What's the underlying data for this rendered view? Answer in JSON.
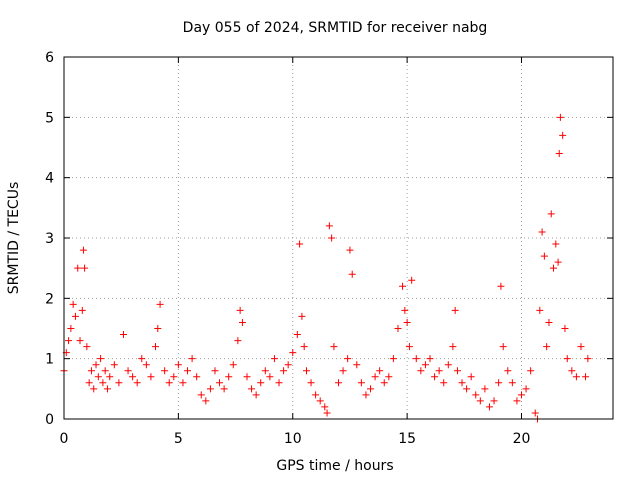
{
  "chart_data": {
    "type": "scatter",
    "title": "Day 055 of 2024, SRMTID for receiver nabg",
    "xlabel": "GPS time / hours",
    "ylabel": "SRMTID / TECUs",
    "xlim": [
      0,
      24
    ],
    "ylim": [
      0,
      6
    ],
    "xticks": [
      0,
      5,
      10,
      15,
      20
    ],
    "xtick_labels": [
      "0",
      "5",
      "10",
      "15",
      "20"
    ],
    "yticks": [
      0,
      1,
      2,
      3,
      4,
      5,
      6
    ],
    "ytick_labels": [
      "0",
      "1",
      "2",
      "3",
      "4",
      "5",
      "6"
    ],
    "grid": true,
    "legend": "none",
    "marker": "plus",
    "color": "#ff0000",
    "series": [
      {
        "name": "SRMTID",
        "x": [
          0.0,
          0.1,
          0.2,
          0.3,
          0.4,
          0.5,
          0.6,
          0.7,
          0.8,
          0.85,
          0.9,
          1.0,
          1.1,
          1.2,
          1.3,
          1.4,
          1.5,
          1.6,
          1.7,
          1.8,
          1.9,
          2.0,
          2.2,
          2.4,
          2.6,
          2.8,
          3.0,
          3.2,
          3.4,
          3.6,
          3.8,
          4.0,
          4.1,
          4.2,
          4.4,
          4.6,
          4.8,
          5.0,
          5.2,
          5.4,
          5.6,
          5.8,
          6.0,
          6.2,
          6.4,
          6.6,
          6.8,
          7.0,
          7.2,
          7.4,
          7.6,
          7.7,
          7.8,
          8.0,
          8.2,
          8.4,
          8.6,
          8.8,
          9.0,
          9.2,
          9.4,
          9.6,
          9.8,
          10.0,
          10.2,
          10.3,
          10.4,
          10.5,
          10.6,
          10.8,
          11.0,
          11.2,
          11.4,
          11.5,
          11.6,
          11.7,
          11.8,
          12.0,
          12.2,
          12.4,
          12.5,
          12.6,
          12.8,
          13.0,
          13.2,
          13.4,
          13.6,
          13.8,
          14.0,
          14.2,
          14.4,
          14.6,
          14.8,
          14.9,
          15.0,
          15.1,
          15.2,
          15.4,
          15.6,
          15.8,
          16.0,
          16.2,
          16.4,
          16.6,
          16.8,
          17.0,
          17.1,
          17.2,
          17.4,
          17.6,
          17.8,
          18.0,
          18.2,
          18.4,
          18.6,
          18.8,
          19.0,
          19.1,
          19.2,
          19.4,
          19.6,
          19.8,
          20.0,
          20.2,
          20.4,
          20.6,
          20.7,
          20.8,
          20.9,
          21.0,
          21.1,
          21.2,
          21.3,
          21.4,
          21.5,
          21.6,
          21.65,
          21.7,
          21.8,
          21.9,
          22.0,
          22.2,
          22.4,
          22.6,
          22.8,
          22.9
        ],
        "y": [
          0.8,
          1.1,
          1.3,
          1.5,
          1.9,
          1.7,
          2.5,
          1.3,
          1.8,
          2.8,
          2.5,
          1.2,
          0.6,
          0.8,
          0.5,
          0.9,
          0.7,
          1.0,
          0.6,
          0.8,
          0.5,
          0.7,
          0.9,
          0.6,
          1.4,
          0.8,
          0.7,
          0.6,
          1.0,
          0.9,
          0.7,
          1.2,
          1.5,
          1.9,
          0.8,
          0.6,
          0.7,
          0.9,
          0.6,
          0.8,
          1.0,
          0.7,
          0.4,
          0.3,
          0.5,
          0.8,
          0.6,
          0.5,
          0.7,
          0.9,
          1.3,
          1.8,
          1.6,
          0.7,
          0.5,
          0.4,
          0.6,
          0.8,
          0.7,
          1.0,
          0.6,
          0.8,
          0.9,
          1.1,
          1.4,
          2.9,
          1.7,
          1.2,
          0.8,
          0.6,
          0.4,
          0.3,
          0.2,
          0.1,
          3.2,
          3.0,
          1.2,
          0.6,
          0.8,
          1.0,
          2.8,
          2.4,
          0.9,
          0.6,
          0.4,
          0.5,
          0.7,
          0.8,
          0.6,
          0.7,
          1.0,
          1.5,
          2.2,
          1.8,
          1.6,
          1.2,
          2.3,
          1.0,
          0.8,
          0.9,
          1.0,
          0.7,
          0.8,
          0.6,
          0.9,
          1.2,
          1.8,
          0.8,
          0.6,
          0.5,
          0.7,
          0.4,
          0.3,
          0.5,
          0.2,
          0.3,
          0.6,
          2.2,
          1.2,
          0.8,
          0.6,
          0.3,
          0.4,
          0.5,
          0.8,
          0.1,
          0.0,
          1.8,
          3.1,
          2.7,
          1.2,
          1.6,
          3.4,
          2.5,
          2.9,
          2.6,
          4.4,
          5.0,
          4.7,
          1.5,
          1.0,
          0.8,
          0.7,
          1.2,
          0.7,
          1.0
        ]
      }
    ]
  }
}
